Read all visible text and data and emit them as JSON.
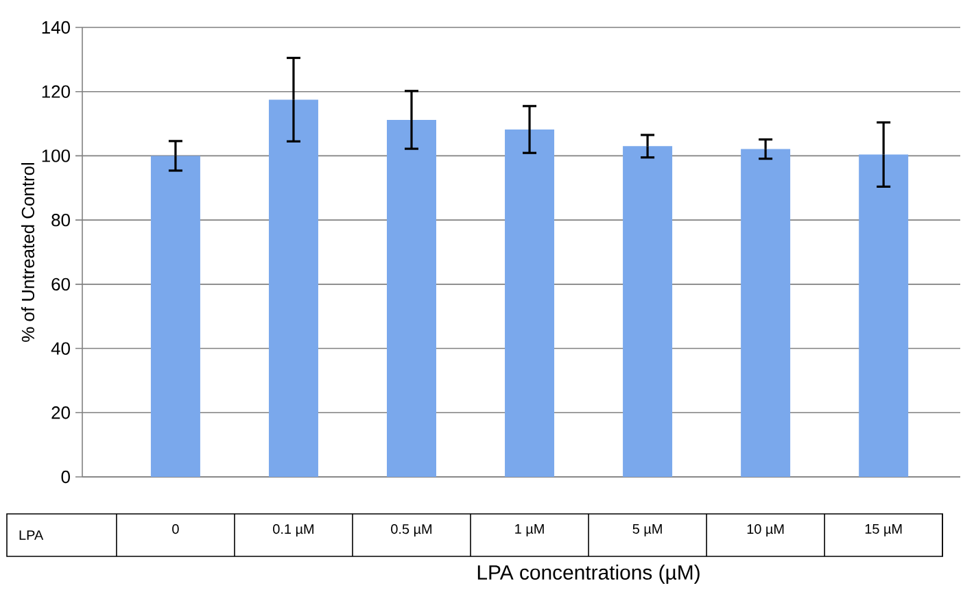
{
  "chart_data": {
    "type": "bar",
    "categories": [
      "0",
      "0.1 µM",
      "0.5 µM",
      "1 µM",
      "5 µM",
      "10 µM",
      "15 µM"
    ],
    "values": [
      100,
      117.5,
      111.2,
      108.2,
      103,
      102.1,
      100.4
    ],
    "errors": [
      4.6,
      13,
      9,
      7.3,
      3.5,
      3,
      10
    ],
    "color": "#7aa8ec",
    "ylabel": "% of Untreated Control",
    "xlabel": "LPA concentrations (µM)",
    "annotations": [
      "LPA"
    ],
    "ylim": [
      0,
      140
    ],
    "yticks": [
      0,
      20,
      40,
      60,
      80,
      100,
      120,
      140
    ],
    "grid": "y"
  }
}
